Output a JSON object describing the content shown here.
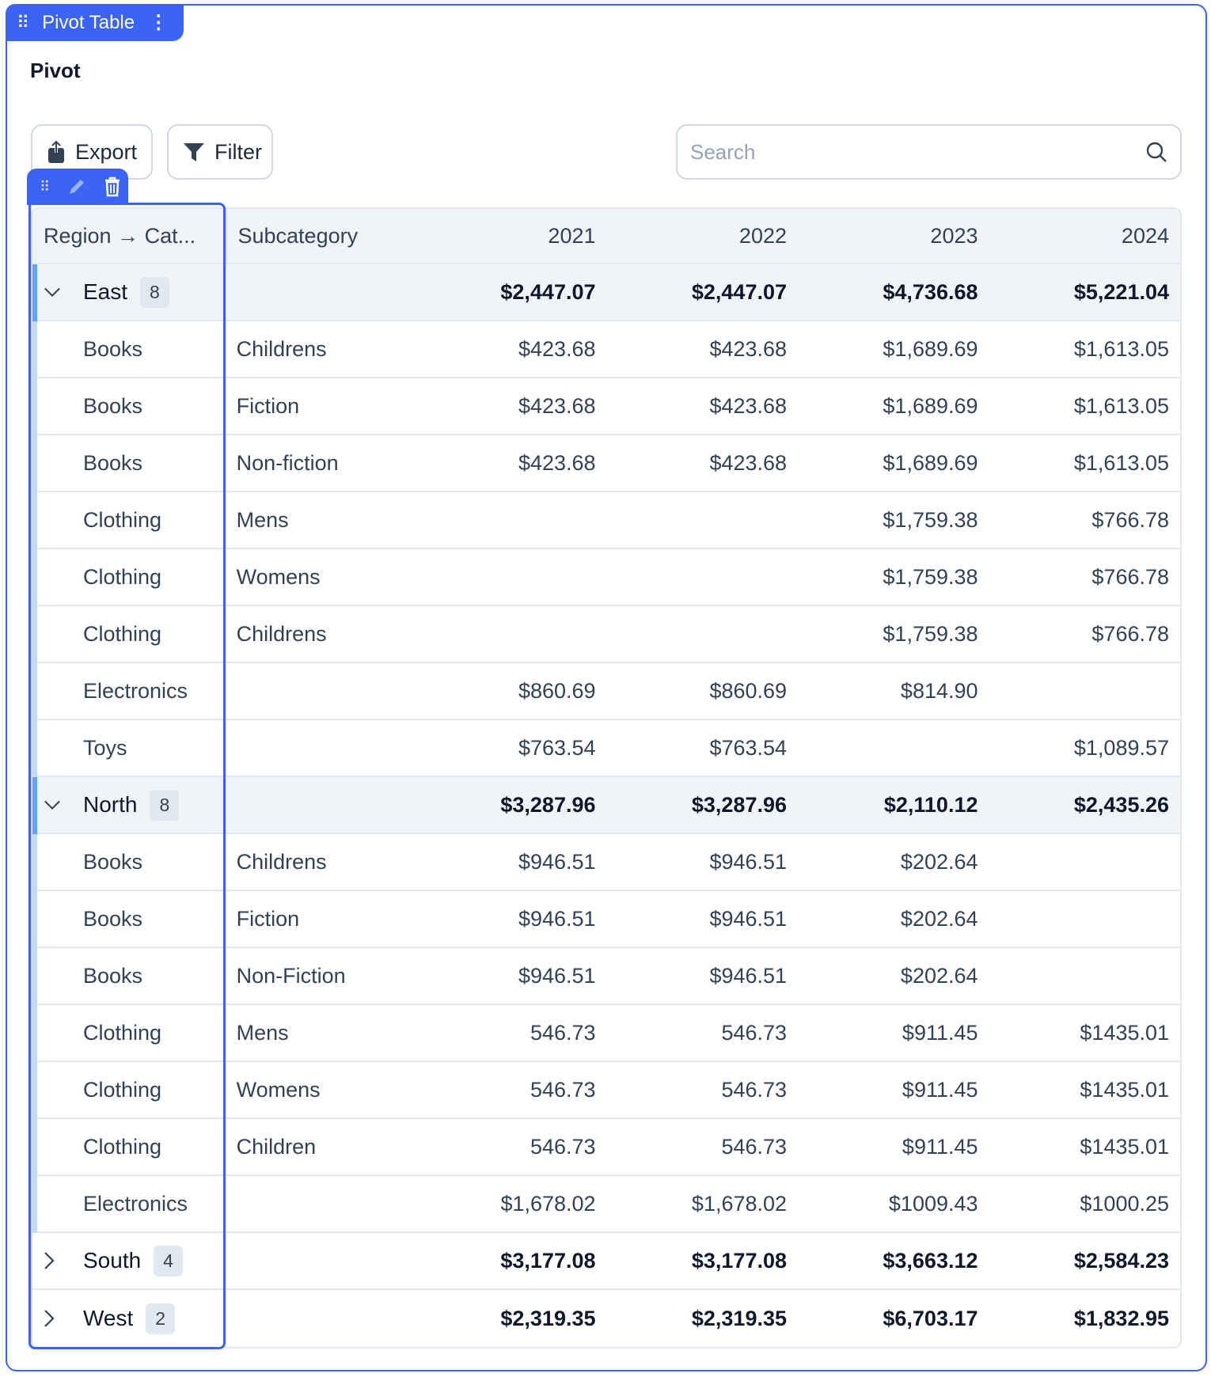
{
  "widget": {
    "title": "Pivot Table",
    "heading": "Pivot"
  },
  "toolbar": {
    "export_label": "Export",
    "filter_label": "Filter",
    "search_placeholder": "Search",
    "search_value": ""
  },
  "colors": {
    "accent": "#3b63f6",
    "group_bar": "#60a5fa",
    "child_bar": "#bfdbfe"
  },
  "columns": [
    "Region → Cat...",
    "Subcategory",
    "2021",
    "2022",
    "2023",
    "2024"
  ],
  "rows": [
    {
      "type": "group",
      "label": "East",
      "count": "8",
      "expanded": true,
      "values": [
        "$2,447.07",
        "$2,447.07",
        "$4,736.68",
        "$5,221.04"
      ]
    },
    {
      "type": "child",
      "category": "Books",
      "subcategory": "Childrens",
      "values": [
        "$423.68",
        "$423.68",
        "$1,689.69",
        "$1,613.05"
      ]
    },
    {
      "type": "child",
      "category": "Books",
      "subcategory": "Fiction",
      "values": [
        "$423.68",
        "$423.68",
        "$1,689.69",
        "$1,613.05"
      ]
    },
    {
      "type": "child",
      "category": "Books",
      "subcategory": "Non-fiction",
      "values": [
        "$423.68",
        "$423.68",
        "$1,689.69",
        "$1,613.05"
      ]
    },
    {
      "type": "child",
      "category": "Clothing",
      "subcategory": "Mens",
      "values": [
        "",
        "",
        "$1,759.38",
        "$766.78"
      ]
    },
    {
      "type": "child",
      "category": "Clothing",
      "subcategory": "Womens",
      "values": [
        "",
        "",
        "$1,759.38",
        "$766.78"
      ]
    },
    {
      "type": "child",
      "category": "Clothing",
      "subcategory": "Childrens",
      "values": [
        "",
        "",
        "$1,759.38",
        "$766.78"
      ]
    },
    {
      "type": "child",
      "category": "Electronics",
      "subcategory": "",
      "values": [
        "$860.69",
        "$860.69",
        "$814.90",
        ""
      ]
    },
    {
      "type": "child",
      "category": "Toys",
      "subcategory": "",
      "values": [
        "$763.54",
        "$763.54",
        "",
        "$1,089.57"
      ]
    },
    {
      "type": "group",
      "label": "North",
      "count": "8",
      "expanded": true,
      "values": [
        "$3,287.96",
        "$3,287.96",
        "$2,110.12",
        "$2,435.26"
      ]
    },
    {
      "type": "child",
      "category": "Books",
      "subcategory": "Childrens",
      "values": [
        "$946.51",
        "$946.51",
        "$202.64",
        ""
      ]
    },
    {
      "type": "child",
      "category": "Books",
      "subcategory": "Fiction",
      "values": [
        "$946.51",
        "$946.51",
        "$202.64",
        ""
      ]
    },
    {
      "type": "child",
      "category": "Books",
      "subcategory": "Non-Fiction",
      "values": [
        "$946.51",
        "$946.51",
        "$202.64",
        ""
      ]
    },
    {
      "type": "child",
      "category": "Clothing",
      "subcategory": "Mens",
      "values": [
        "546.73",
        "546.73",
        "$911.45",
        "$1435.01"
      ]
    },
    {
      "type": "child",
      "category": "Clothing",
      "subcategory": "Womens",
      "values": [
        "546.73",
        "546.73",
        "$911.45",
        "$1435.01"
      ]
    },
    {
      "type": "child",
      "category": "Clothing",
      "subcategory": "Children",
      "values": [
        "546.73",
        "546.73",
        "$911.45",
        "$1435.01"
      ]
    },
    {
      "type": "child",
      "category": "Electronics",
      "subcategory": "",
      "values": [
        "$1,678.02",
        "$1,678.02",
        "$1009.43",
        "$1000.25"
      ]
    },
    {
      "type": "group",
      "label": "South",
      "count": "4",
      "expanded": false,
      "values": [
        "$3,177.08",
        "$3,177.08",
        "$3,663.12",
        "$2,584.23"
      ]
    },
    {
      "type": "group",
      "label": "West",
      "count": "2",
      "expanded": false,
      "values": [
        "$2,319.35",
        "$2,319.35",
        "$6,703.17",
        "$1,832.95"
      ]
    }
  ]
}
